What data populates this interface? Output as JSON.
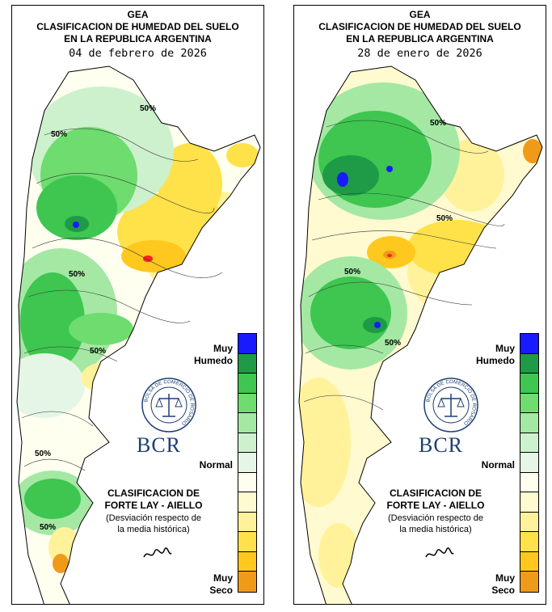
{
  "maps": [
    {
      "header": [
        "GEA",
        "CLASIFICACION DE HUMEDAD DEL SUELO",
        "EN LA REPUBLICA ARGENTINA"
      ],
      "date": "04 de febrero de 2026",
      "contour_labels": [
        "50%",
        "50%",
        "50%",
        "50%",
        "50%",
        "50%"
      ]
    },
    {
      "header": [
        "GEA",
        "CLASIFICACION DE HUMEDAD DEL SUELO",
        "EN LA REPUBLICA ARGENTINA"
      ],
      "date": "28 de enero de 2026",
      "contour_labels": [
        "50%",
        "50%",
        "50%",
        "50%"
      ]
    }
  ],
  "legend": {
    "top_label": [
      "Muy",
      "Humedo"
    ],
    "middle_label": "Normal",
    "bottom_label": [
      "Muy",
      "Seco"
    ],
    "classes": [
      "#1a1aff",
      "#1f9a46",
      "#3ec650",
      "#6edc6e",
      "#a4e8a4",
      "#cdf0cd",
      "#e6f6e6",
      "#fffff0",
      "#fffad0",
      "#fff29a",
      "#ffe14a",
      "#ffc81e",
      "#f09a1a",
      "#ff2020"
    ]
  },
  "brand": {
    "seal_text": "BOLSA DE COMERCIO DE ROSARIO",
    "name": "BCR"
  },
  "classification": {
    "line1": "CLASIFICACION DE",
    "line2": "FORTE LAY - AIELLO",
    "line3": "(Desviación respecto de",
    "line4": "la media histórica)"
  }
}
